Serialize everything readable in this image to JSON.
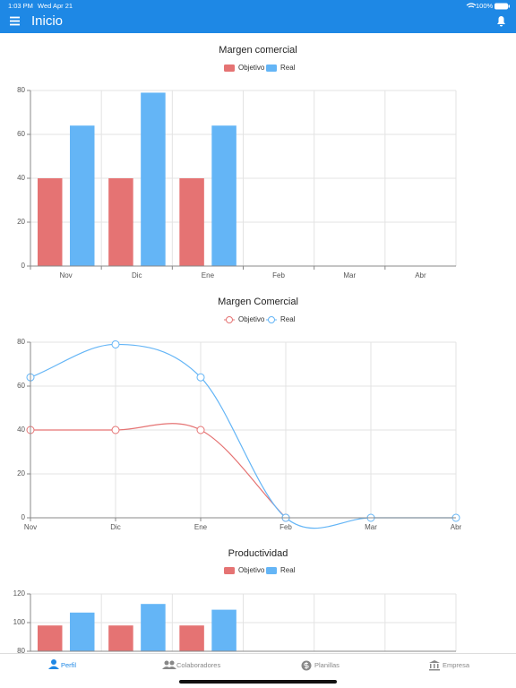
{
  "status_bar": {
    "time": "1:03 PM",
    "date": "Wed Apr 21",
    "battery": "100%"
  },
  "app_bar": {
    "title": "Inicio"
  },
  "chart_data": [
    {
      "type": "bar",
      "title": "Margen comercial",
      "categories": [
        "Nov",
        "Dic",
        "Ene",
        "Feb",
        "Mar",
        "Abr"
      ],
      "series": [
        {
          "name": "Objetivo",
          "color": "#e57373",
          "values": [
            40,
            40,
            40,
            0,
            0,
            0
          ]
        },
        {
          "name": "Real",
          "color": "#64b5f6",
          "values": [
            64,
            79,
            64,
            0,
            0,
            0
          ]
        }
      ],
      "ylim": [
        0,
        80
      ],
      "yticks": [
        0,
        20,
        40,
        60,
        80
      ],
      "grid": true
    },
    {
      "type": "line",
      "title": "Margen Comercial",
      "categories": [
        "Nov",
        "Dic",
        "Ene",
        "Feb",
        "Mar",
        "Abr"
      ],
      "series": [
        {
          "name": "Objetivo",
          "color": "#e57373",
          "values": [
            40,
            40,
            40,
            0,
            null,
            null
          ]
        },
        {
          "name": "Real",
          "color": "#64b5f6",
          "values": [
            64,
            79,
            64,
            0,
            0,
            0
          ]
        }
      ],
      "ylim": [
        0,
        80
      ],
      "yticks": [
        0,
        20,
        40,
        60,
        80
      ],
      "grid": true
    },
    {
      "type": "bar",
      "title": "Productividad",
      "series": [
        {
          "name": "Objetivo",
          "color": "#e57373",
          "values": [
            98,
            98,
            98,
            null,
            null,
            null
          ]
        },
        {
          "name": "Real",
          "color": "#64b5f6",
          "values": [
            107,
            113,
            109,
            null,
            null,
            null
          ]
        }
      ],
      "ylim": [
        80,
        120
      ],
      "yticks": [
        80,
        100,
        120
      ],
      "grid": true
    }
  ],
  "tab_bar": {
    "tabs": [
      "Perfil",
      "Colaboradores",
      "Planillas",
      "Empresa"
    ]
  }
}
